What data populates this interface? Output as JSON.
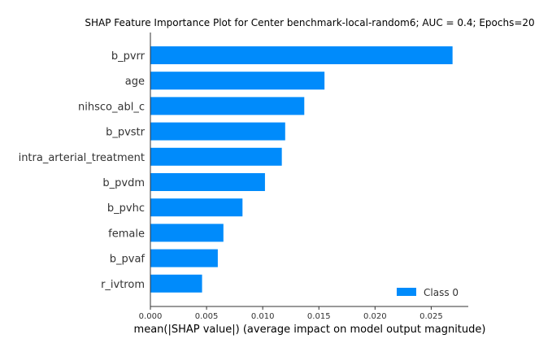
{
  "chart_data": {
    "type": "bar",
    "orientation": "horizontal",
    "title": "SHAP Feature Importance Plot for Center benchmark-local-random6; AUC = 0.4; Epochs=20",
    "xlabel": "mean(|SHAP value|) (average impact on model output magnitude)",
    "ylabel": "",
    "xlim": [
      0,
      0.0283
    ],
    "xticks": [
      "0.000",
      "0.005",
      "0.010",
      "0.015",
      "0.020",
      "0.025"
    ],
    "tick_values": [
      0,
      0.005,
      0.01,
      0.015,
      0.02,
      0.025
    ],
    "categories": [
      "b_pvrr",
      "age",
      "nihsco_abl_c",
      "b_pvstr",
      "intra_arterial_treatment",
      "b_pvdm",
      "b_pvhc",
      "female",
      "b_pvaf",
      "r_ivtrom"
    ],
    "series": [
      {
        "name": "Class 0",
        "color": "#008bfb",
        "values": [
          0.0269,
          0.0155,
          0.0137,
          0.012,
          0.0117,
          0.0102,
          0.0082,
          0.0065,
          0.006,
          0.0046
        ]
      }
    ],
    "legend_position": "lower-right",
    "grid": false
  }
}
